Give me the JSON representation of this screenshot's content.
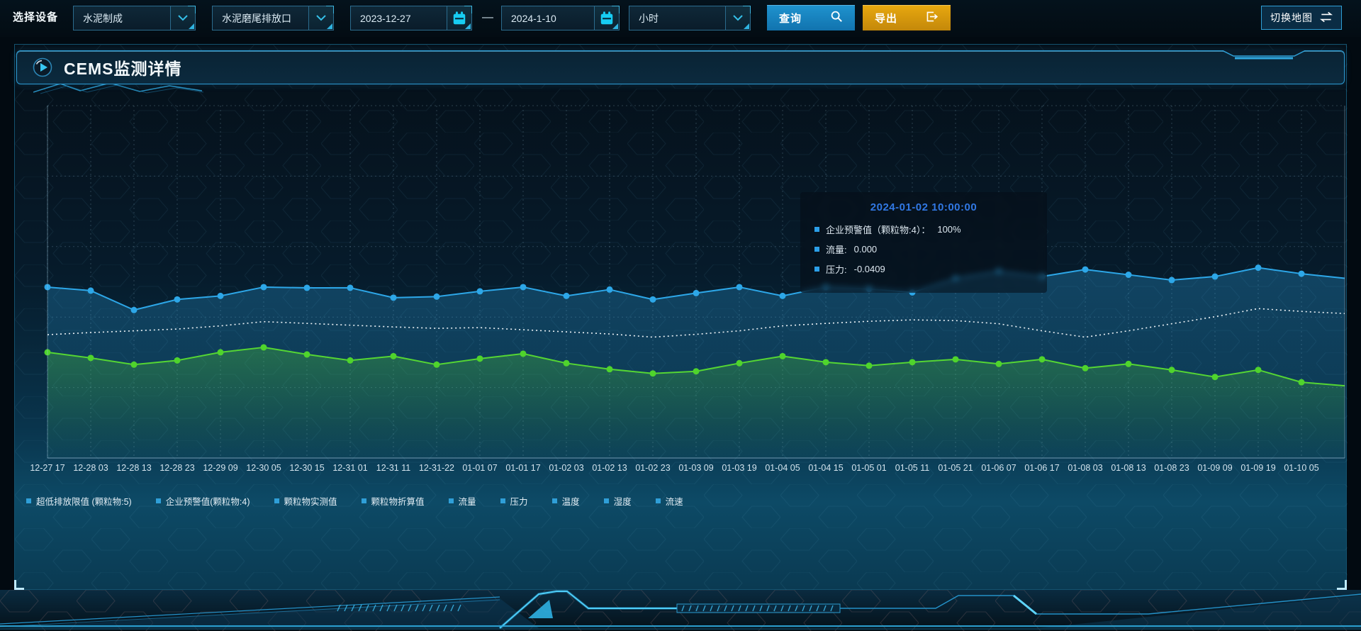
{
  "toolbar": {
    "device_label": "选择设备",
    "device_type_value": "水泥制成",
    "device_outlet_value": "水泥磨尾排放口",
    "date_start": "2023-12-27",
    "date_separator": "—",
    "date_end": "2024-1-10",
    "interval_value": "小时",
    "query_label": "查询",
    "export_label": "导出",
    "switch_map_label": "切换地图"
  },
  "panel": {
    "title": "CEMS监测详情"
  },
  "tooltip": {
    "title": "2024-01-02 10:00:00",
    "marker_color": "#2b9fe8",
    "rows": [
      {
        "label": "企业预警值（颗粒物:4）：",
        "value": "100%"
      },
      {
        "label": "流量:",
        "value": "0.000"
      },
      {
        "label": "压力:",
        "value": "-0.0409"
      }
    ]
  },
  "legend": {
    "marker_color": "#2f9fd8",
    "items": [
      "超低排放限值 (颗粒物:5)",
      "企业预警值(颗粒物:4)",
      "颗粒物实测值",
      "颗粒物折算值",
      "流量",
      "压力",
      "温度",
      "湿度",
      "流速"
    ]
  },
  "chart_data": {
    "type": "line",
    "title": "CEMS监测详情",
    "y_axis_labels_visible": false,
    "value_units": "relative height % (no y-axis tick labels shown in chart)",
    "grid": true,
    "categories": [
      "12-27 17",
      "12-28 03",
      "12-28 13",
      "12-28 23",
      "12-29 09",
      "12-30 05",
      "12-30 15",
      "12-31 01",
      "12-31 11",
      "12-31-22",
      "01-01 07",
      "01-01 17",
      "01-02 03",
      "01-02 13",
      "01-02 23",
      "01-03 09",
      "01-03 19",
      "01-04 05",
      "01-04 15",
      "01-05 01",
      "01-05 11",
      "01-05 21",
      "01-06 07",
      "01-06 17",
      "01-08 03",
      "01-08 13",
      "01-08 23",
      "01-09 09",
      "01-09 19",
      "01-10 05"
    ],
    "series": [
      {
        "name": "blue_line",
        "color": "#2da7e8",
        "style": "solid",
        "markers": true,
        "area": true,
        "values": [
          48.5,
          47.5,
          42.0,
          45.0,
          46.0,
          48.5,
          48.3,
          48.3,
          45.5,
          45.8,
          47.3,
          48.5,
          46.0,
          47.8,
          45.0,
          46.8,
          48.5,
          46.0,
          48.5,
          48.0,
          47.0,
          51.0,
          53.0,
          51.5,
          53.5,
          52.0,
          50.5,
          51.5,
          54.0,
          52.3
        ],
        "edge_value": 51.0
      },
      {
        "name": "white_dotted_line",
        "color": "#edf3f7",
        "style": "dotted",
        "markers": false,
        "area": false,
        "values": [
          35.0,
          35.6,
          36.1,
          36.6,
          37.5,
          38.7,
          38.2,
          37.7,
          37.2,
          36.8,
          37.0,
          36.4,
          35.8,
          35.2,
          34.3,
          35.1,
          36.1,
          37.5,
          38.2,
          38.8,
          39.2,
          39.0,
          38.1,
          36.1,
          34.3,
          36.1,
          38.1,
          40.1,
          42.4,
          41.6
        ],
        "edge_value": 41.0
      },
      {
        "name": "green_line",
        "color": "#55d633",
        "marker_color": "#4fd42c",
        "style": "solid",
        "markers": true,
        "area": true,
        "values": [
          30.0,
          28.4,
          26.5,
          27.7,
          30.0,
          31.4,
          29.4,
          27.7,
          28.9,
          26.5,
          28.2,
          29.6,
          26.9,
          25.2,
          24.0,
          24.6,
          26.9,
          28.9,
          27.2,
          26.2,
          27.2,
          28.0,
          26.7,
          28.0,
          25.5,
          26.7,
          25.0,
          23.0,
          25.0,
          21.5
        ],
        "edge_value": 20.5
      }
    ]
  }
}
